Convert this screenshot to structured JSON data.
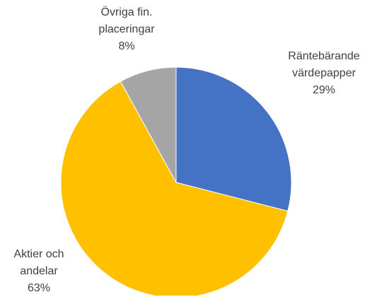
{
  "chart_data": {
    "type": "pie",
    "categories": [
      "Räntebärande värdepapper",
      "Aktier och andelar",
      "Övriga fin. placeringar"
    ],
    "values": [
      29,
      63,
      8
    ],
    "value_labels": [
      "29%",
      "63%",
      "8%"
    ],
    "colors": [
      "#4472c4",
      "#ffc000",
      "#a5a5a5"
    ]
  }
}
